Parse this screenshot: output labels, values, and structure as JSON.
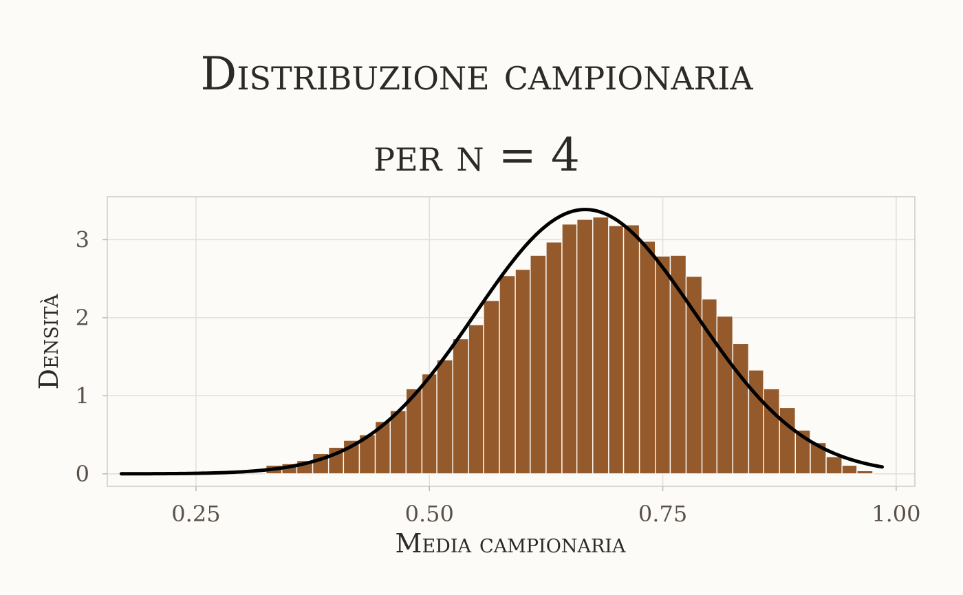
{
  "chart_data": {
    "type": "bar",
    "title_line1": "Distribuzione campionaria",
    "title_line2": "per n = 4",
    "xlabel": "Media campionaria",
    "ylabel": "Densità",
    "xlim": [
      0.155,
      1.02
    ],
    "ylim": [
      -0.16,
      3.55
    ],
    "x_ticks": [
      0.25,
      0.5,
      0.75,
      1.0
    ],
    "x_tick_labels": [
      "0.25",
      "0.50",
      "0.75",
      "1.00"
    ],
    "y_ticks": [
      0,
      1,
      2,
      3
    ],
    "y_tick_labels": [
      "0",
      "1",
      "2",
      "3"
    ],
    "grid": true,
    "bin_width": 0.01667,
    "bins": [
      {
        "x0": 0.325,
        "x1": 0.342,
        "y": 0.11
      },
      {
        "x0": 0.342,
        "x1": 0.358,
        "y": 0.13
      },
      {
        "x0": 0.358,
        "x1": 0.375,
        "y": 0.17
      },
      {
        "x0": 0.375,
        "x1": 0.392,
        "y": 0.26
      },
      {
        "x0": 0.392,
        "x1": 0.408,
        "y": 0.34
      },
      {
        "x0": 0.408,
        "x1": 0.425,
        "y": 0.43
      },
      {
        "x0": 0.425,
        "x1": 0.442,
        "y": 0.5
      },
      {
        "x0": 0.442,
        "x1": 0.458,
        "y": 0.67
      },
      {
        "x0": 0.458,
        "x1": 0.475,
        "y": 0.81
      },
      {
        "x0": 0.475,
        "x1": 0.492,
        "y": 1.09
      },
      {
        "x0": 0.492,
        "x1": 0.508,
        "y": 1.28
      },
      {
        "x0": 0.508,
        "x1": 0.525,
        "y": 1.46
      },
      {
        "x0": 0.525,
        "x1": 0.542,
        "y": 1.73
      },
      {
        "x0": 0.542,
        "x1": 0.558,
        "y": 1.91
      },
      {
        "x0": 0.558,
        "x1": 0.575,
        "y": 2.22
      },
      {
        "x0": 0.575,
        "x1": 0.592,
        "y": 2.54
      },
      {
        "x0": 0.592,
        "x1": 0.608,
        "y": 2.62
      },
      {
        "x0": 0.608,
        "x1": 0.625,
        "y": 2.8
      },
      {
        "x0": 0.625,
        "x1": 0.642,
        "y": 2.97
      },
      {
        "x0": 0.642,
        "x1": 0.658,
        "y": 3.2
      },
      {
        "x0": 0.658,
        "x1": 0.675,
        "y": 3.26
      },
      {
        "x0": 0.675,
        "x1": 0.692,
        "y": 3.29
      },
      {
        "x0": 0.692,
        "x1": 0.708,
        "y": 3.18
      },
      {
        "x0": 0.708,
        "x1": 0.725,
        "y": 3.19
      },
      {
        "x0": 0.725,
        "x1": 0.742,
        "y": 2.98
      },
      {
        "x0": 0.742,
        "x1": 0.758,
        "y": 2.79
      },
      {
        "x0": 0.758,
        "x1": 0.775,
        "y": 2.8
      },
      {
        "x0": 0.775,
        "x1": 0.792,
        "y": 2.53
      },
      {
        "x0": 0.792,
        "x1": 0.808,
        "y": 2.24
      },
      {
        "x0": 0.808,
        "x1": 0.825,
        "y": 2.02
      },
      {
        "x0": 0.825,
        "x1": 0.842,
        "y": 1.67
      },
      {
        "x0": 0.842,
        "x1": 0.858,
        "y": 1.33
      },
      {
        "x0": 0.858,
        "x1": 0.875,
        "y": 1.09
      },
      {
        "x0": 0.875,
        "x1": 0.892,
        "y": 0.85
      },
      {
        "x0": 0.892,
        "x1": 0.908,
        "y": 0.56
      },
      {
        "x0": 0.908,
        "x1": 0.925,
        "y": 0.4
      },
      {
        "x0": 0.925,
        "x1": 0.942,
        "y": 0.22
      },
      {
        "x0": 0.942,
        "x1": 0.958,
        "y": 0.11
      },
      {
        "x0": 0.958,
        "x1": 0.975,
        "y": 0.04
      }
    ],
    "curve": {
      "type": "normal_density",
      "mean": 0.667,
      "sd": 0.1178,
      "x_range": [
        0.17,
        0.985
      ],
      "color": "#000000"
    },
    "bar_color": "#955a2b",
    "bar_edge_color": "#fcfbf8",
    "background_color": "#fcfbf8",
    "grid_color": "#e2dfdb",
    "panel_border_color": "#cfcbc6"
  }
}
